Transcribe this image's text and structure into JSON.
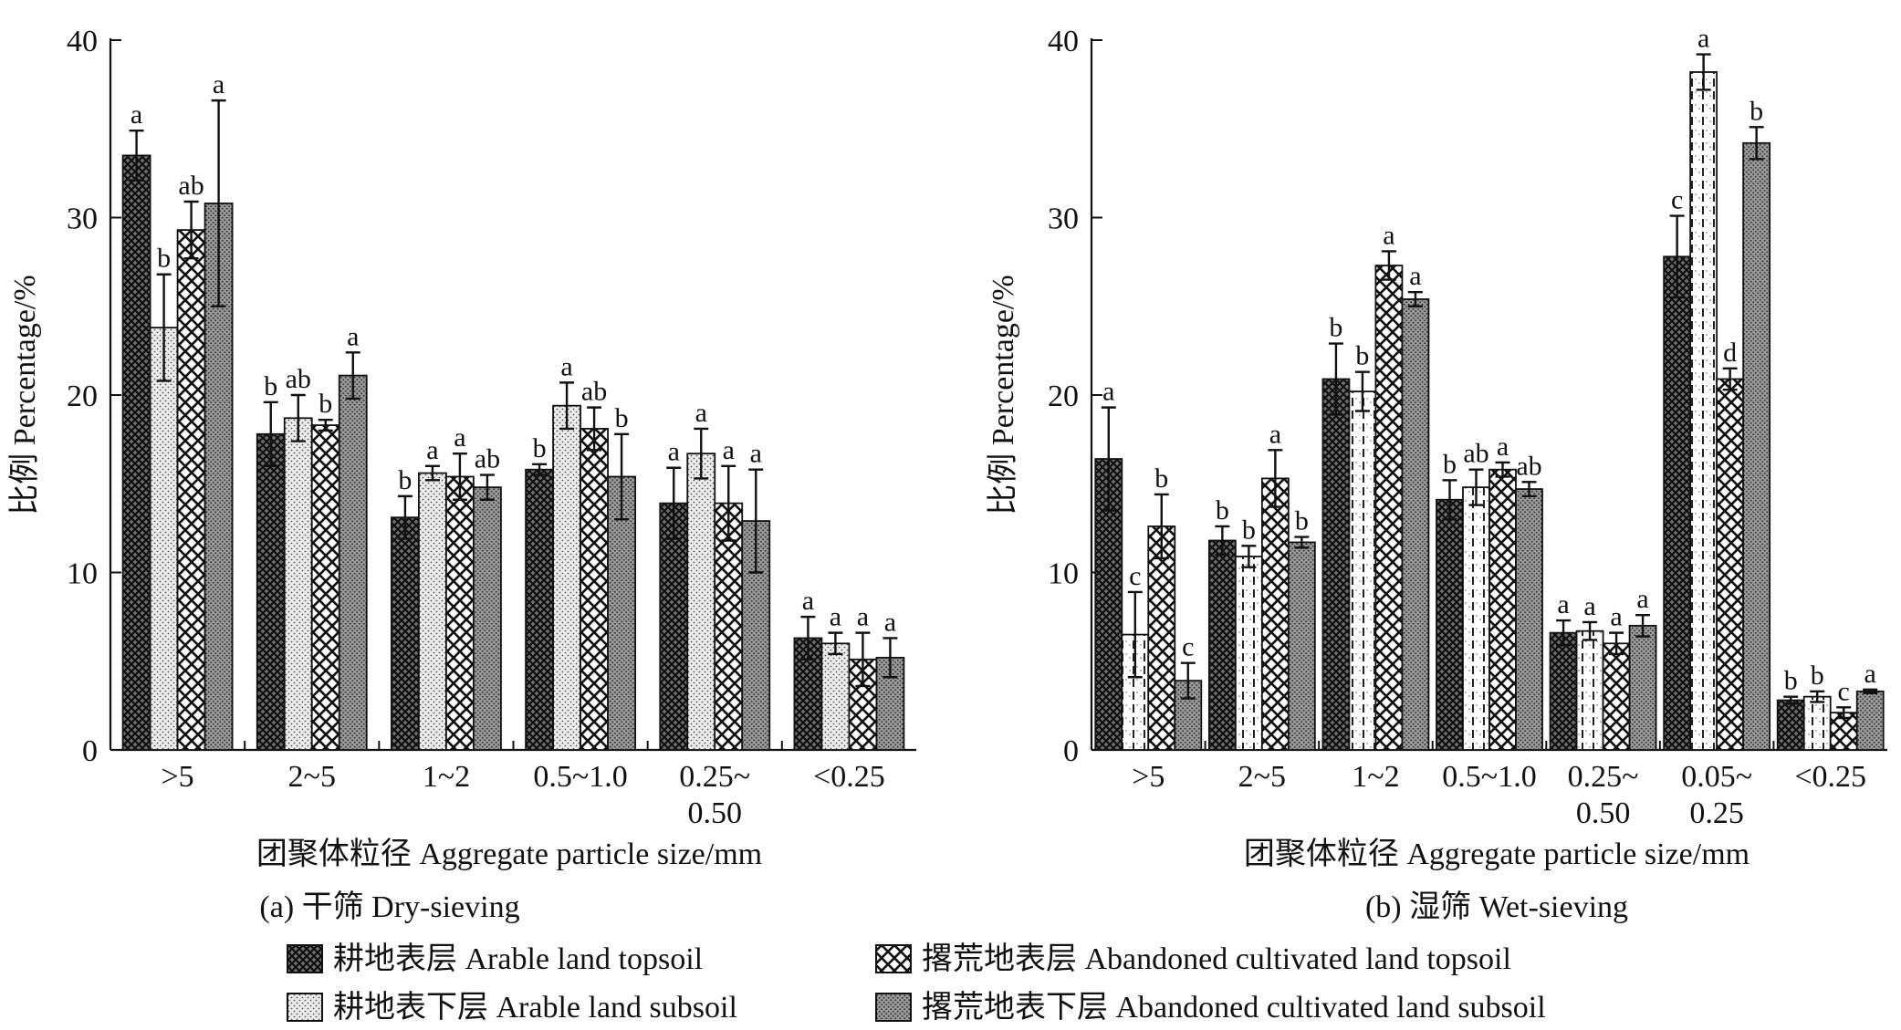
{
  "series_names": [
    "耕地表层 Arable land topsoil",
    "耕地表下层 Arable land subsoil",
    "撂荒地表层 Abandoned cultivated land topsoil",
    "撂荒地表下层 Abandoned cultivated land subsoil"
  ],
  "legend": {
    "items": [
      {
        "label": "耕地表层 Arable land topsoil",
        "pattern": "dense-cross"
      },
      {
        "label": "撂荒地表层 Abandoned cultivated land topsoil",
        "pattern": "open-cross"
      },
      {
        "label": "耕地表下层 Arable land subsoil",
        "pattern": "fine-dots"
      },
      {
        "label": "撂荒地表下层 Abandoned cultivated land subsoil",
        "pattern": "grey-dots"
      }
    ]
  },
  "chart_data": [
    {
      "type": "bar",
      "caption": "(a) 干筛 Dry-sieving",
      "xlabel": "团聚体粒径 Aggregate particle size/mm",
      "ylabel": "比例 Percentage/%",
      "ylim": [
        0,
        40
      ],
      "yticks": [
        "0",
        "10",
        "20",
        "30",
        "40"
      ],
      "categories": [
        ">5",
        "2~5",
        "1~2",
        "0.5~1.0",
        "0.25~\n0.50",
        "<0.25"
      ],
      "series": [
        {
          "name": "耕地表层 Arable land topsoil",
          "values": [
            33.5,
            17.8,
            13.1,
            15.8,
            13.9,
            6.3
          ],
          "errors": [
            1.4,
            1.8,
            1.2,
            0.3,
            2.0,
            1.2
          ],
          "labels": [
            "a",
            "b",
            "b",
            "b",
            "a",
            "a"
          ]
        },
        {
          "name": "耕地表下层 Arable land subsoil",
          "values": [
            23.8,
            18.7,
            15.6,
            19.4,
            16.7,
            6.0
          ],
          "errors": [
            3.0,
            1.3,
            0.4,
            1.3,
            1.4,
            0.6
          ],
          "labels": [
            "b",
            "ab",
            "a",
            "a",
            "a",
            "a"
          ]
        },
        {
          "name": "撂荒地表层 Abandoned cultivated land topsoil",
          "values": [
            29.3,
            18.3,
            15.4,
            18.1,
            13.9,
            5.1
          ],
          "errors": [
            1.6,
            0.3,
            1.3,
            1.2,
            2.1,
            1.5
          ],
          "labels": [
            "ab",
            "b",
            "a",
            "ab",
            "a",
            "a"
          ]
        },
        {
          "name": "撂荒地表下层 Abandoned cultivated land subsoil",
          "values": [
            30.8,
            21.1,
            14.8,
            15.4,
            12.9,
            5.2
          ],
          "errors": [
            5.8,
            1.3,
            0.7,
            2.4,
            2.9,
            1.1
          ],
          "labels": [
            "a",
            "a",
            "ab",
            "b",
            "a",
            "a"
          ]
        }
      ]
    },
    {
      "type": "bar",
      "caption": "(b) 湿筛 Wet-sieving",
      "xlabel": "团聚体粒径 Aggregate particle size/mm",
      "ylabel": "比例 Percentage/%",
      "ylim": [
        0,
        40
      ],
      "yticks": [
        "0",
        "10",
        "20",
        "30",
        "40"
      ],
      "categories": [
        ">5",
        "2~5",
        "1~2",
        "0.5~1.0",
        "0.25~\n0.50",
        "0.05~\n0.25",
        "<0.25"
      ],
      "series": [
        {
          "name": "耕地表层 Arable land topsoil",
          "values": [
            16.4,
            11.8,
            20.9,
            14.1,
            6.6,
            27.8,
            2.8
          ],
          "errors": [
            2.9,
            0.8,
            2.0,
            1.1,
            0.7,
            2.3,
            0.2
          ],
          "labels": [
            "a",
            "b",
            "b",
            "b",
            "a",
            "c",
            "b"
          ]
        },
        {
          "name": "耕地表下层 Arable land subsoil",
          "values": [
            6.5,
            10.9,
            20.2,
            14.8,
            6.7,
            38.2,
            3.0
          ],
          "errors": [
            2.4,
            0.6,
            1.1,
            1.0,
            0.5,
            1.0,
            0.3
          ],
          "labels": [
            "c",
            "b",
            "b",
            "ab",
            "a",
            "a",
            "b"
          ]
        },
        {
          "name": "撂荒地表层 Abandoned cultivated land topsoil",
          "values": [
            12.6,
            15.3,
            27.3,
            15.8,
            6.0,
            20.9,
            2.1
          ],
          "errors": [
            1.8,
            1.6,
            0.8,
            0.4,
            0.6,
            0.6,
            0.3
          ],
          "labels": [
            "b",
            "a",
            "a",
            "a",
            "a",
            "d",
            "c"
          ]
        },
        {
          "name": "撂荒地表下层 Abandoned cultivated land subsoil",
          "values": [
            3.9,
            11.7,
            25.4,
            14.7,
            7.0,
            34.2,
            3.3
          ],
          "errors": [
            1.0,
            0.3,
            0.4,
            0.4,
            0.6,
            0.9,
            0.1
          ],
          "labels": [
            "c",
            "b",
            "a",
            "ab",
            "a",
            "b",
            "a"
          ]
        }
      ]
    }
  ]
}
